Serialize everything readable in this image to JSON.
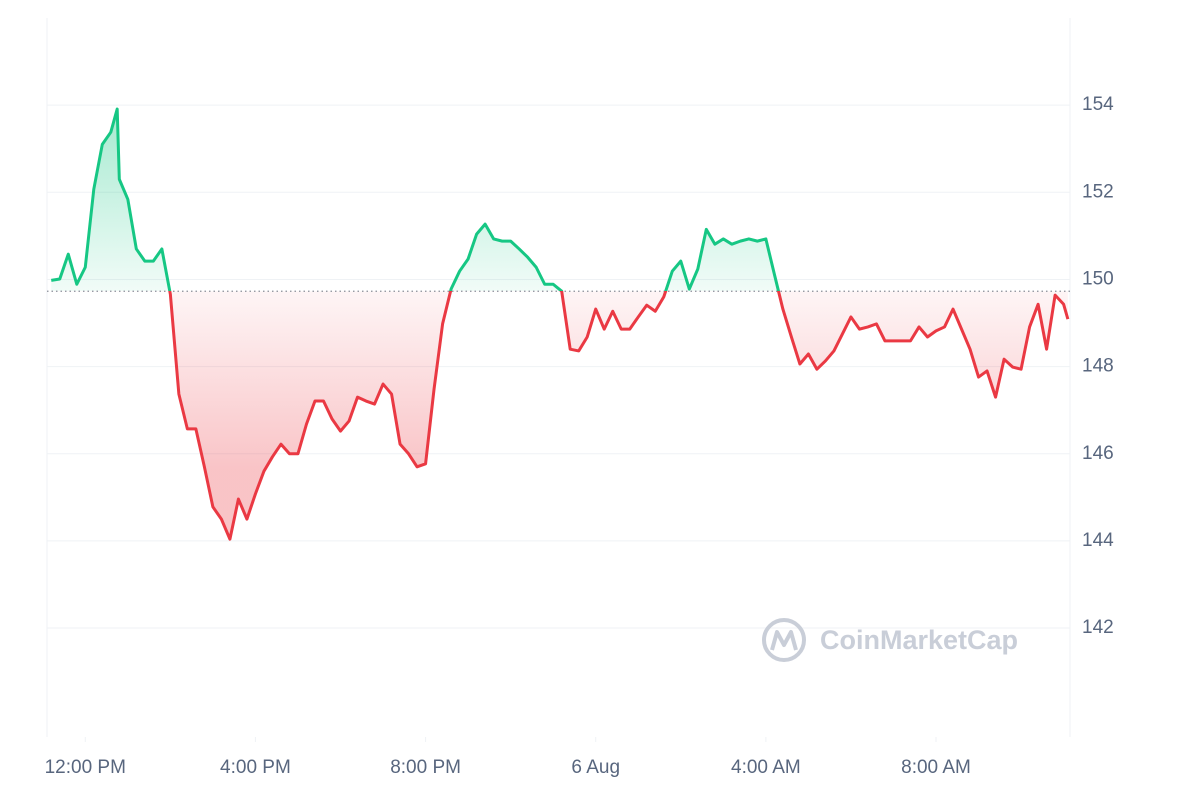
{
  "chart_data": {
    "type": "line",
    "watermark": "CoinMarketCap",
    "up_color": "#16c784",
    "down_color": "#ea3943",
    "baseline": 149.73,
    "grid": true,
    "xlim": [
      11.1,
      35.15
    ],
    "xticks": [
      {
        "value": 12,
        "label": "12:00 PM"
      },
      {
        "value": 16,
        "label": "4:00 PM"
      },
      {
        "value": 20,
        "label": "8:00 PM"
      },
      {
        "value": 24,
        "label": "6 Aug"
      },
      {
        "value": 28,
        "label": "4:00 AM"
      },
      {
        "value": 32,
        "label": "8:00 AM"
      }
    ],
    "ylim": [
      139.5,
      156
    ],
    "yticks": [
      142,
      144,
      146,
      148,
      150,
      152,
      154
    ],
    "x": [
      11.2,
      11.4,
      11.6,
      11.8,
      12,
      12.2,
      12.4,
      12.6,
      12.75,
      12.8,
      13,
      13.2,
      13.4,
      13.6,
      13.8,
      14,
      14.2,
      14.4,
      14.6,
      14.8,
      15,
      15.2,
      15.4,
      15.6,
      15.8,
      16,
      16.2,
      16.4,
      16.6,
      16.8,
      17,
      17.2,
      17.4,
      17.6,
      17.8,
      18,
      18.2,
      18.4,
      18.6,
      18.8,
      19,
      19.2,
      19.4,
      19.6,
      19.8,
      20,
      20.2,
      20.4,
      20.6,
      20.8,
      21,
      21.2,
      21.4,
      21.6,
      21.8,
      22,
      22.2,
      22.4,
      22.6,
      22.8,
      23,
      23.2,
      23.4,
      23.6,
      23.8,
      24,
      24.2,
      24.4,
      24.6,
      24.8,
      25,
      25.2,
      25.4,
      25.6,
      25.8,
      26,
      26.2,
      26.4,
      26.6,
      26.8,
      27,
      27.2,
      27.4,
      27.6,
      27.8,
      28,
      28.2,
      28.4,
      28.6,
      28.8,
      29,
      29.2,
      29.4,
      29.6,
      29.8,
      30,
      30.2,
      30.4,
      30.6,
      30.8,
      31,
      31.2,
      31.4,
      31.6,
      31.8,
      32,
      32.2,
      32.4,
      32.6,
      32.8,
      33,
      33.2,
      33.4,
      33.6,
      33.8,
      34,
      34.2,
      34.4,
      34.6,
      34.8,
      35,
      35.1
    ],
    "values": [
      149.98,
      150.01,
      150.58,
      149.89,
      150.28,
      152.07,
      153.1,
      153.38,
      153.91,
      152.3,
      151.84,
      150.7,
      150.42,
      150.42,
      150.7,
      149.66,
      147.37,
      146.57,
      146.57,
      145.7,
      144.78,
      144.5,
      144.04,
      144.96,
      144.5,
      145.08,
      145.6,
      145.93,
      146.22,
      146.0,
      146.0,
      146.68,
      147.21,
      147.21,
      146.8,
      146.52,
      146.75,
      147.3,
      147.21,
      147.14,
      147.6,
      147.37,
      146.22,
      146.0,
      145.7,
      145.77,
      147.49,
      148.98,
      149.78,
      150.19,
      150.47,
      151.04,
      151.27,
      150.93,
      150.88,
      150.88,
      150.7,
      150.51,
      150.28,
      149.89,
      149.89,
      149.73,
      148.4,
      148.36,
      148.68,
      149.32,
      148.86,
      149.27,
      148.86,
      148.86,
      149.14,
      149.41,
      149.27,
      149.6,
      150.19,
      150.42,
      149.78,
      150.24,
      151.15,
      150.81,
      150.93,
      150.81,
      150.88,
      150.93,
      150.88,
      150.93,
      150.12,
      149.32,
      148.68,
      148.06,
      148.29,
      147.94,
      148.13,
      148.36,
      148.75,
      149.14,
      148.86,
      148.91,
      148.98,
      148.59,
      148.59,
      148.59,
      148.59,
      148.91,
      148.68,
      148.82,
      148.91,
      149.32,
      148.86,
      148.4,
      147.76,
      147.9,
      147.3,
      148.17,
      147.99,
      147.94,
      148.91,
      149.43,
      148.4,
      149.64,
      149.43,
      149.09
    ]
  }
}
